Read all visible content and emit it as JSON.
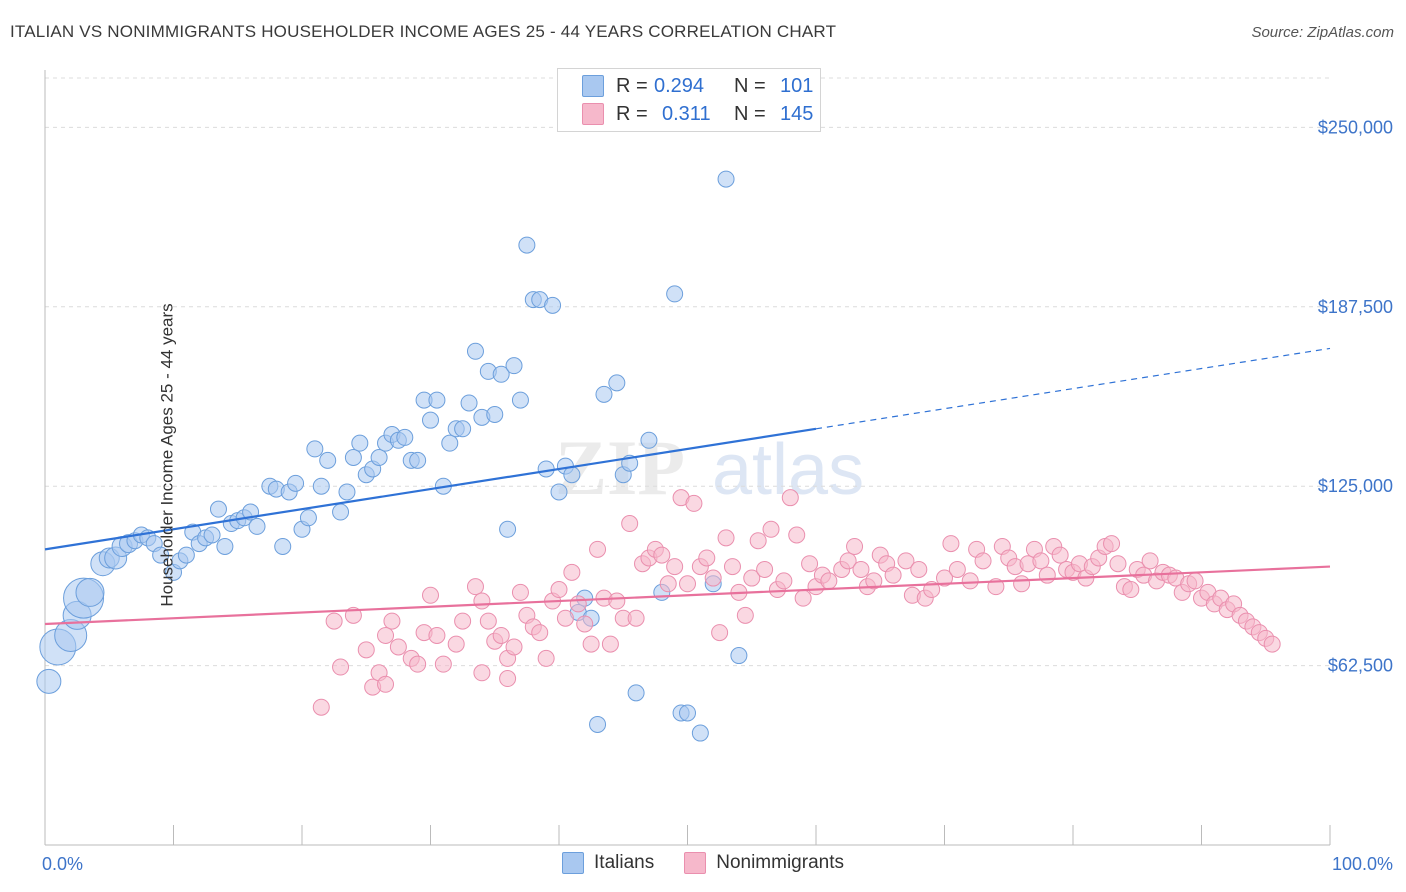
{
  "header": {
    "title": "ITALIAN VS NONIMMIGRANTS HOUSEHOLDER INCOME AGES 25 - 44 YEARS CORRELATION CHART",
    "source": "Source: ZipAtlas.com"
  },
  "watermark": {
    "zip": "ZIP",
    "atlas": "atlas"
  },
  "legend": {
    "rows": [
      {
        "r_label": "R =",
        "r_value": "0.294",
        "n_label": "N =",
        "n_value": "101",
        "color": "#a9c8f0"
      },
      {
        "r_label": "R =",
        "r_value": "0.311",
        "n_label": "N =",
        "n_value": "145",
        "color": "#f6b8cb"
      }
    ]
  },
  "bottom_legend": [
    "Italians",
    "Nonimmigrants"
  ],
  "colors": {
    "italians_fill": "#a9c8f0",
    "italians_stroke": "#6c9fdc",
    "italians_line": "#2f72d6",
    "nonimm_fill": "#f6b8cb",
    "nonimm_stroke": "#ea8fae",
    "nonimm_line": "#e8719c",
    "tick_label": "#3d74c9",
    "grid": "#dcdcdc"
  },
  "chart_data": {
    "type": "scatter",
    "title": "ITALIAN VS NONIMMIGRANTS HOUSEHOLDER INCOME AGES 25 - 44 YEARS CORRELATION CHART",
    "xlabel": "",
    "ylabel": "Householder Income Ages 25 - 44 years",
    "xlim": [
      0,
      100
    ],
    "ylim": [
      0,
      270000
    ],
    "x_tick_labels": [
      "0.0%",
      "100.0%"
    ],
    "y_ticks": [
      62500,
      125000,
      187500,
      250000
    ],
    "y_tick_labels": [
      "$62,500",
      "$125,000",
      "$187,500",
      "$250,000"
    ],
    "grid": true,
    "series": [
      {
        "name": "Italians",
        "trend": {
          "x": [
            0,
            60
          ],
          "y": [
            103000,
            145000
          ],
          "dashed_to": [
            100,
            173000
          ]
        },
        "points": [
          [
            0.3,
            57000,
            12
          ],
          [
            1,
            69000,
            18
          ],
          [
            2,
            73000,
            16
          ],
          [
            2.5,
            80000,
            14
          ],
          [
            3,
            86000,
            20
          ],
          [
            3.5,
            88000,
            14
          ],
          [
            4.5,
            98000,
            12
          ],
          [
            5,
            100000,
            10
          ],
          [
            5.5,
            100000,
            11
          ],
          [
            6,
            104000,
            10
          ],
          [
            6.5,
            105000,
            9
          ],
          [
            7,
            106000,
            8
          ],
          [
            7.5,
            108000,
            8
          ],
          [
            8,
            107000,
            8
          ],
          [
            8.5,
            105000,
            8
          ],
          [
            9,
            101000,
            8
          ],
          [
            10,
            95000,
            8
          ],
          [
            10.5,
            99000,
            8
          ],
          [
            11,
            101000,
            8
          ],
          [
            11.5,
            109000,
            8
          ],
          [
            12,
            105000,
            8
          ],
          [
            12.5,
            107000,
            8
          ],
          [
            13,
            108000,
            8
          ],
          [
            13.5,
            117000,
            8
          ],
          [
            14,
            104000,
            8
          ],
          [
            14.5,
            112000,
            8
          ],
          [
            15,
            113000,
            8
          ],
          [
            15.5,
            114000,
            8
          ],
          [
            16,
            116000,
            8
          ],
          [
            16.5,
            111000,
            8
          ],
          [
            17.5,
            125000,
            8
          ],
          [
            18,
            124000,
            8
          ],
          [
            18.5,
            104000,
            8
          ],
          [
            19,
            123000,
            8
          ],
          [
            19.5,
            126000,
            8
          ],
          [
            20,
            110000,
            8
          ],
          [
            20.5,
            114000,
            8
          ],
          [
            21,
            138000,
            8
          ],
          [
            21.5,
            125000,
            8
          ],
          [
            22,
            134000,
            8
          ],
          [
            23,
            116000,
            8
          ],
          [
            23.5,
            123000,
            8
          ],
          [
            24,
            135000,
            8
          ],
          [
            24.5,
            140000,
            8
          ],
          [
            25,
            129000,
            8
          ],
          [
            25.5,
            131000,
            8
          ],
          [
            26,
            135000,
            8
          ],
          [
            26.5,
            140000,
            8
          ],
          [
            27,
            143000,
            8
          ],
          [
            27.5,
            141000,
            8
          ],
          [
            28,
            142000,
            8
          ],
          [
            28.5,
            134000,
            8
          ],
          [
            29,
            134000,
            8
          ],
          [
            29.5,
            155000,
            8
          ],
          [
            30,
            148000,
            8
          ],
          [
            30.5,
            155000,
            8
          ],
          [
            31,
            125000,
            8
          ],
          [
            31.5,
            140000,
            8
          ],
          [
            32,
            145000,
            8
          ],
          [
            32.5,
            145000,
            8
          ],
          [
            33,
            154000,
            8
          ],
          [
            33.5,
            172000,
            8
          ],
          [
            34,
            149000,
            8
          ],
          [
            34.5,
            165000,
            8
          ],
          [
            35,
            150000,
            8
          ],
          [
            35.5,
            164000,
            8
          ],
          [
            36,
            110000,
            8
          ],
          [
            36.5,
            167000,
            8
          ],
          [
            37,
            155000,
            8
          ],
          [
            37.5,
            209000,
            8
          ],
          [
            38,
            190000,
            8
          ],
          [
            38.5,
            190000,
            8
          ],
          [
            39,
            131000,
            8
          ],
          [
            39.5,
            188000,
            8
          ],
          [
            40,
            123000,
            8
          ],
          [
            40.5,
            132000,
            8
          ],
          [
            41,
            129000,
            8
          ],
          [
            41.5,
            81000,
            8
          ],
          [
            42,
            86000,
            8
          ],
          [
            42.5,
            79000,
            8
          ],
          [
            43,
            42000,
            8
          ],
          [
            43.5,
            157000,
            8
          ],
          [
            44.5,
            161000,
            8
          ],
          [
            45,
            129000,
            8
          ],
          [
            45.5,
            133000,
            8
          ],
          [
            46,
            53000,
            8
          ],
          [
            47,
            141000,
            8
          ],
          [
            48,
            88000,
            8
          ],
          [
            49,
            192000,
            8
          ],
          [
            49.5,
            46000,
            8
          ],
          [
            50,
            46000,
            8
          ],
          [
            51,
            39000,
            8
          ],
          [
            52,
            91000,
            8
          ],
          [
            53,
            232000,
            8
          ],
          [
            54,
            66000,
            8
          ]
        ]
      },
      {
        "name": "Nonimmigrants",
        "trend": {
          "x": [
            0,
            100
          ],
          "y": [
            77000,
            97000
          ]
        },
        "points": [
          [
            21.5,
            48000,
            8
          ],
          [
            24,
            80000,
            8
          ],
          [
            25,
            68000,
            8
          ],
          [
            25.5,
            55000,
            8
          ],
          [
            26,
            60000,
            8
          ],
          [
            26.5,
            56000,
            8
          ],
          [
            27,
            78000,
            8
          ],
          [
            27.5,
            69000,
            8
          ],
          [
            28.5,
            65000,
            8
          ],
          [
            29,
            63000,
            8
          ],
          [
            29.5,
            74000,
            8
          ],
          [
            30,
            87000,
            8
          ],
          [
            30.5,
            73000,
            8
          ],
          [
            31,
            63000,
            8
          ],
          [
            32,
            70000,
            8
          ],
          [
            32.5,
            78000,
            8
          ],
          [
            33.5,
            90000,
            8
          ],
          [
            34,
            85000,
            8
          ],
          [
            34.5,
            78000,
            8
          ],
          [
            35,
            71000,
            8
          ],
          [
            35.5,
            73000,
            8
          ],
          [
            36,
            65000,
            8
          ],
          [
            36.5,
            69000,
            8
          ],
          [
            37,
            88000,
            8
          ],
          [
            37.5,
            80000,
            8
          ],
          [
            38,
            76000,
            8
          ],
          [
            38.5,
            74000,
            8
          ],
          [
            39,
            65000,
            8
          ],
          [
            39.5,
            85000,
            8
          ],
          [
            40,
            89000,
            8
          ],
          [
            40.5,
            79000,
            8
          ],
          [
            41,
            95000,
            8
          ],
          [
            41.5,
            84000,
            8
          ],
          [
            42,
            77000,
            8
          ],
          [
            42.5,
            70000,
            8
          ],
          [
            43,
            103000,
            8
          ],
          [
            43.5,
            86000,
            8
          ],
          [
            44,
            70000,
            8
          ],
          [
            44.5,
            85000,
            8
          ],
          [
            45,
            79000,
            8
          ],
          [
            45.5,
            112000,
            8
          ],
          [
            46,
            79000,
            8
          ],
          [
            46.5,
            98000,
            8
          ],
          [
            47,
            100000,
            8
          ],
          [
            47.5,
            103000,
            8
          ],
          [
            48,
            101000,
            8
          ],
          [
            48.5,
            91000,
            8
          ],
          [
            49,
            97000,
            8
          ],
          [
            49.5,
            121000,
            8
          ],
          [
            50,
            91000,
            8
          ],
          [
            50.5,
            119000,
            8
          ],
          [
            51,
            97000,
            8
          ],
          [
            51.5,
            100000,
            8
          ],
          [
            52,
            93000,
            8
          ],
          [
            52.5,
            74000,
            8
          ],
          [
            53,
            107000,
            8
          ],
          [
            53.5,
            97000,
            8
          ],
          [
            54,
            88000,
            8
          ],
          [
            54.5,
            80000,
            8
          ],
          [
            55,
            93000,
            8
          ],
          [
            55.5,
            106000,
            8
          ],
          [
            56,
            96000,
            8
          ],
          [
            56.5,
            110000,
            8
          ],
          [
            57,
            89000,
            8
          ],
          [
            57.5,
            92000,
            8
          ],
          [
            58,
            121000,
            8
          ],
          [
            58.5,
            108000,
            8
          ],
          [
            59,
            86000,
            8
          ],
          [
            59.5,
            98000,
            8
          ],
          [
            60,
            90000,
            8
          ],
          [
            60.5,
            94000,
            8
          ],
          [
            61,
            92000,
            8
          ],
          [
            62,
            96000,
            8
          ],
          [
            62.5,
            99000,
            8
          ],
          [
            63,
            104000,
            8
          ],
          [
            63.5,
            96000,
            8
          ],
          [
            64,
            90000,
            8
          ],
          [
            64.5,
            92000,
            8
          ],
          [
            65,
            101000,
            8
          ],
          [
            65.5,
            98000,
            8
          ],
          [
            66,
            94000,
            8
          ],
          [
            67,
            99000,
            8
          ],
          [
            67.5,
            87000,
            8
          ],
          [
            68,
            96000,
            8
          ],
          [
            68.5,
            86000,
            8
          ],
          [
            69,
            89000,
            8
          ],
          [
            70,
            93000,
            8
          ],
          [
            70.5,
            105000,
            8
          ],
          [
            71,
            96000,
            8
          ],
          [
            72,
            92000,
            8
          ],
          [
            72.5,
            103000,
            8
          ],
          [
            73,
            99000,
            8
          ],
          [
            74,
            90000,
            8
          ],
          [
            74.5,
            104000,
            8
          ],
          [
            75,
            100000,
            8
          ],
          [
            75.5,
            97000,
            8
          ],
          [
            76,
            91000,
            8
          ],
          [
            76.5,
            98000,
            8
          ],
          [
            77,
            103000,
            8
          ],
          [
            77.5,
            99000,
            8
          ],
          [
            78,
            94000,
            8
          ],
          [
            78.5,
            104000,
            8
          ],
          [
            79,
            101000,
            8
          ],
          [
            79.5,
            96000,
            8
          ],
          [
            80,
            95000,
            8
          ],
          [
            80.5,
            98000,
            8
          ],
          [
            81,
            93000,
            8
          ],
          [
            81.5,
            97000,
            8
          ],
          [
            82,
            100000,
            8
          ],
          [
            82.5,
            104000,
            8
          ],
          [
            83,
            105000,
            8
          ],
          [
            83.5,
            98000,
            8
          ],
          [
            84,
            90000,
            8
          ],
          [
            84.5,
            89000,
            8
          ],
          [
            85,
            96000,
            8
          ],
          [
            85.5,
            94000,
            8
          ],
          [
            86,
            99000,
            8
          ],
          [
            86.5,
            92000,
            8
          ],
          [
            87,
            95000,
            8
          ],
          [
            87.5,
            94000,
            8
          ],
          [
            88,
            93000,
            8
          ],
          [
            88.5,
            88000,
            8
          ],
          [
            89,
            91000,
            8
          ],
          [
            89.5,
            92000,
            8
          ],
          [
            90,
            86000,
            8
          ],
          [
            90.5,
            88000,
            8
          ],
          [
            91,
            84000,
            8
          ],
          [
            91.5,
            86000,
            8
          ],
          [
            92,
            82000,
            8
          ],
          [
            92.5,
            84000,
            8
          ],
          [
            93,
            80000,
            8
          ],
          [
            93.5,
            78000,
            8
          ],
          [
            94,
            76000,
            8
          ],
          [
            94.5,
            74000,
            8
          ],
          [
            95,
            72000,
            8
          ],
          [
            95.5,
            70000,
            8
          ],
          [
            23,
            62000,
            8
          ],
          [
            26.5,
            73000,
            8
          ],
          [
            22.5,
            78000,
            8
          ],
          [
            34,
            60000,
            8
          ],
          [
            36,
            58000,
            8
          ]
        ]
      }
    ]
  }
}
